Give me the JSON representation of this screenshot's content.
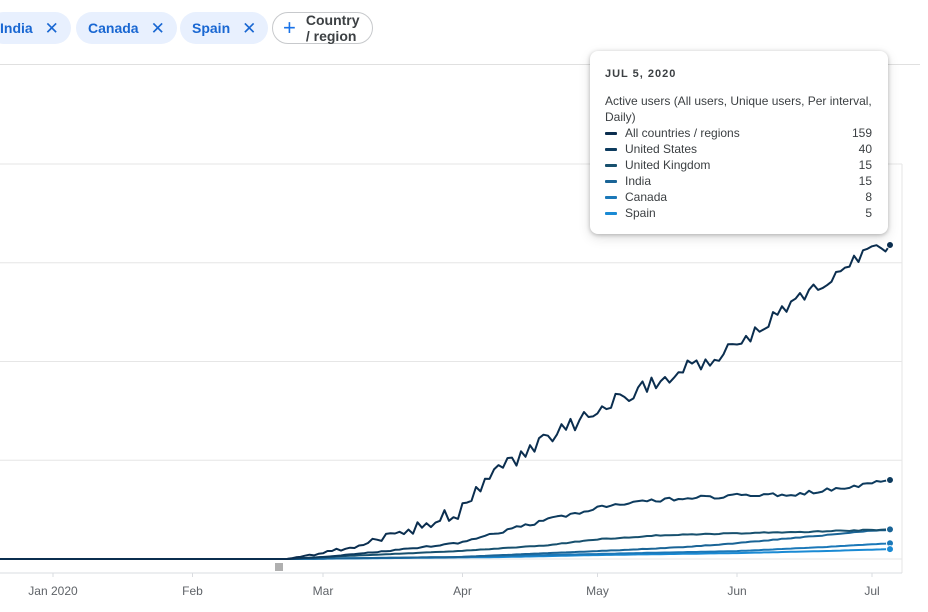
{
  "filters": {
    "chips": [
      {
        "label": "India",
        "remove_icon": "close-icon"
      },
      {
        "label": "Canada",
        "remove_icon": "close-icon"
      },
      {
        "label": "Spain",
        "remove_icon": "close-icon"
      }
    ],
    "add_label": "Country / region",
    "add_icon": "plus-icon"
  },
  "tooltip": {
    "date": "JUL 5, 2020",
    "metric": "Active users (All users, Unique users, Per interval, Daily)",
    "rows": [
      {
        "label": "All countries / regions",
        "value": "159",
        "color": "#0b2e4f"
      },
      {
        "label": "United States",
        "value": "40",
        "color": "#0d3b5e"
      },
      {
        "label": "United Kingdom",
        "value": "15",
        "color": "#17506e"
      },
      {
        "label": "India",
        "value": "15",
        "color": "#1a6496"
      },
      {
        "label": "Canada",
        "value": "8",
        "color": "#1b78b8"
      },
      {
        "label": "Spain",
        "value": "5",
        "color": "#1a8ad4"
      }
    ]
  },
  "chart_data": {
    "type": "line",
    "x_ticks": [
      "Jan 2020",
      "Feb",
      "Mar",
      "Apr",
      "May",
      "Jun",
      "Jul"
    ],
    "x_tick_dates": [
      "2020-01-01",
      "2020-02-01",
      "2020-03-01",
      "2020-04-01",
      "2020-05-01",
      "2020-06-01",
      "2020-07-01"
    ],
    "grid": true,
    "ylim": [
      0,
      200
    ],
    "series": [
      {
        "name": "All countries / regions",
        "color": "#0b2e4f",
        "points": [
          [
            "2019-12-20",
            0
          ],
          [
            "2020-02-22",
            0
          ],
          [
            "2020-03-01",
            3
          ],
          [
            "2020-03-10",
            8
          ],
          [
            "2020-03-20",
            14
          ],
          [
            "2020-03-31",
            24
          ],
          [
            "2020-04-10",
            46
          ],
          [
            "2020-04-20",
            62
          ],
          [
            "2020-05-01",
            75
          ],
          [
            "2020-05-10",
            86
          ],
          [
            "2020-05-20",
            96
          ],
          [
            "2020-05-31",
            106
          ],
          [
            "2020-06-10",
            124
          ],
          [
            "2020-06-20",
            140
          ],
          [
            "2020-06-30",
            155
          ],
          [
            "2020-07-05",
            159
          ]
        ]
      },
      {
        "name": "United States",
        "color": "#0d3b5e",
        "points": [
          [
            "2019-12-20",
            0
          ],
          [
            "2020-02-22",
            0
          ],
          [
            "2020-03-01",
            1
          ],
          [
            "2020-03-15",
            4
          ],
          [
            "2020-03-31",
            8
          ],
          [
            "2020-04-10",
            14
          ],
          [
            "2020-04-20",
            20
          ],
          [
            "2020-05-01",
            26
          ],
          [
            "2020-05-15",
            30
          ],
          [
            "2020-05-31",
            32
          ],
          [
            "2020-06-15",
            33
          ],
          [
            "2020-06-25",
            36
          ],
          [
            "2020-07-05",
            40
          ]
        ]
      },
      {
        "name": "United Kingdom",
        "color": "#17506e",
        "points": [
          [
            "2019-12-20",
            0
          ],
          [
            "2020-02-22",
            0
          ],
          [
            "2020-03-01",
            1
          ],
          [
            "2020-03-31",
            4
          ],
          [
            "2020-04-20",
            7
          ],
          [
            "2020-05-01",
            10
          ],
          [
            "2020-05-15",
            12
          ],
          [
            "2020-06-01",
            13
          ],
          [
            "2020-06-20",
            14
          ],
          [
            "2020-07-05",
            15
          ]
        ]
      },
      {
        "name": "India",
        "color": "#1a6496",
        "points": [
          [
            "2019-12-20",
            0
          ],
          [
            "2020-02-22",
            0
          ],
          [
            "2020-03-31",
            1
          ],
          [
            "2020-04-20",
            3
          ],
          [
            "2020-05-01",
            4
          ],
          [
            "2020-05-20",
            6
          ],
          [
            "2020-06-01",
            8
          ],
          [
            "2020-06-20",
            12
          ],
          [
            "2020-07-05",
            15
          ]
        ]
      },
      {
        "name": "Canada",
        "color": "#1b78b8",
        "points": [
          [
            "2019-12-20",
            0
          ],
          [
            "2020-02-22",
            0
          ],
          [
            "2020-03-31",
            1
          ],
          [
            "2020-04-20",
            2
          ],
          [
            "2020-05-10",
            3
          ],
          [
            "2020-06-01",
            4
          ],
          [
            "2020-06-20",
            6
          ],
          [
            "2020-07-05",
            8
          ]
        ]
      },
      {
        "name": "Spain",
        "color": "#1a8ad4",
        "points": [
          [
            "2019-12-20",
            0
          ],
          [
            "2020-02-22",
            0
          ],
          [
            "2020-04-10",
            1
          ],
          [
            "2020-05-01",
            2
          ],
          [
            "2020-06-01",
            3
          ],
          [
            "2020-06-20",
            4
          ],
          [
            "2020-07-05",
            5
          ]
        ]
      }
    ]
  }
}
